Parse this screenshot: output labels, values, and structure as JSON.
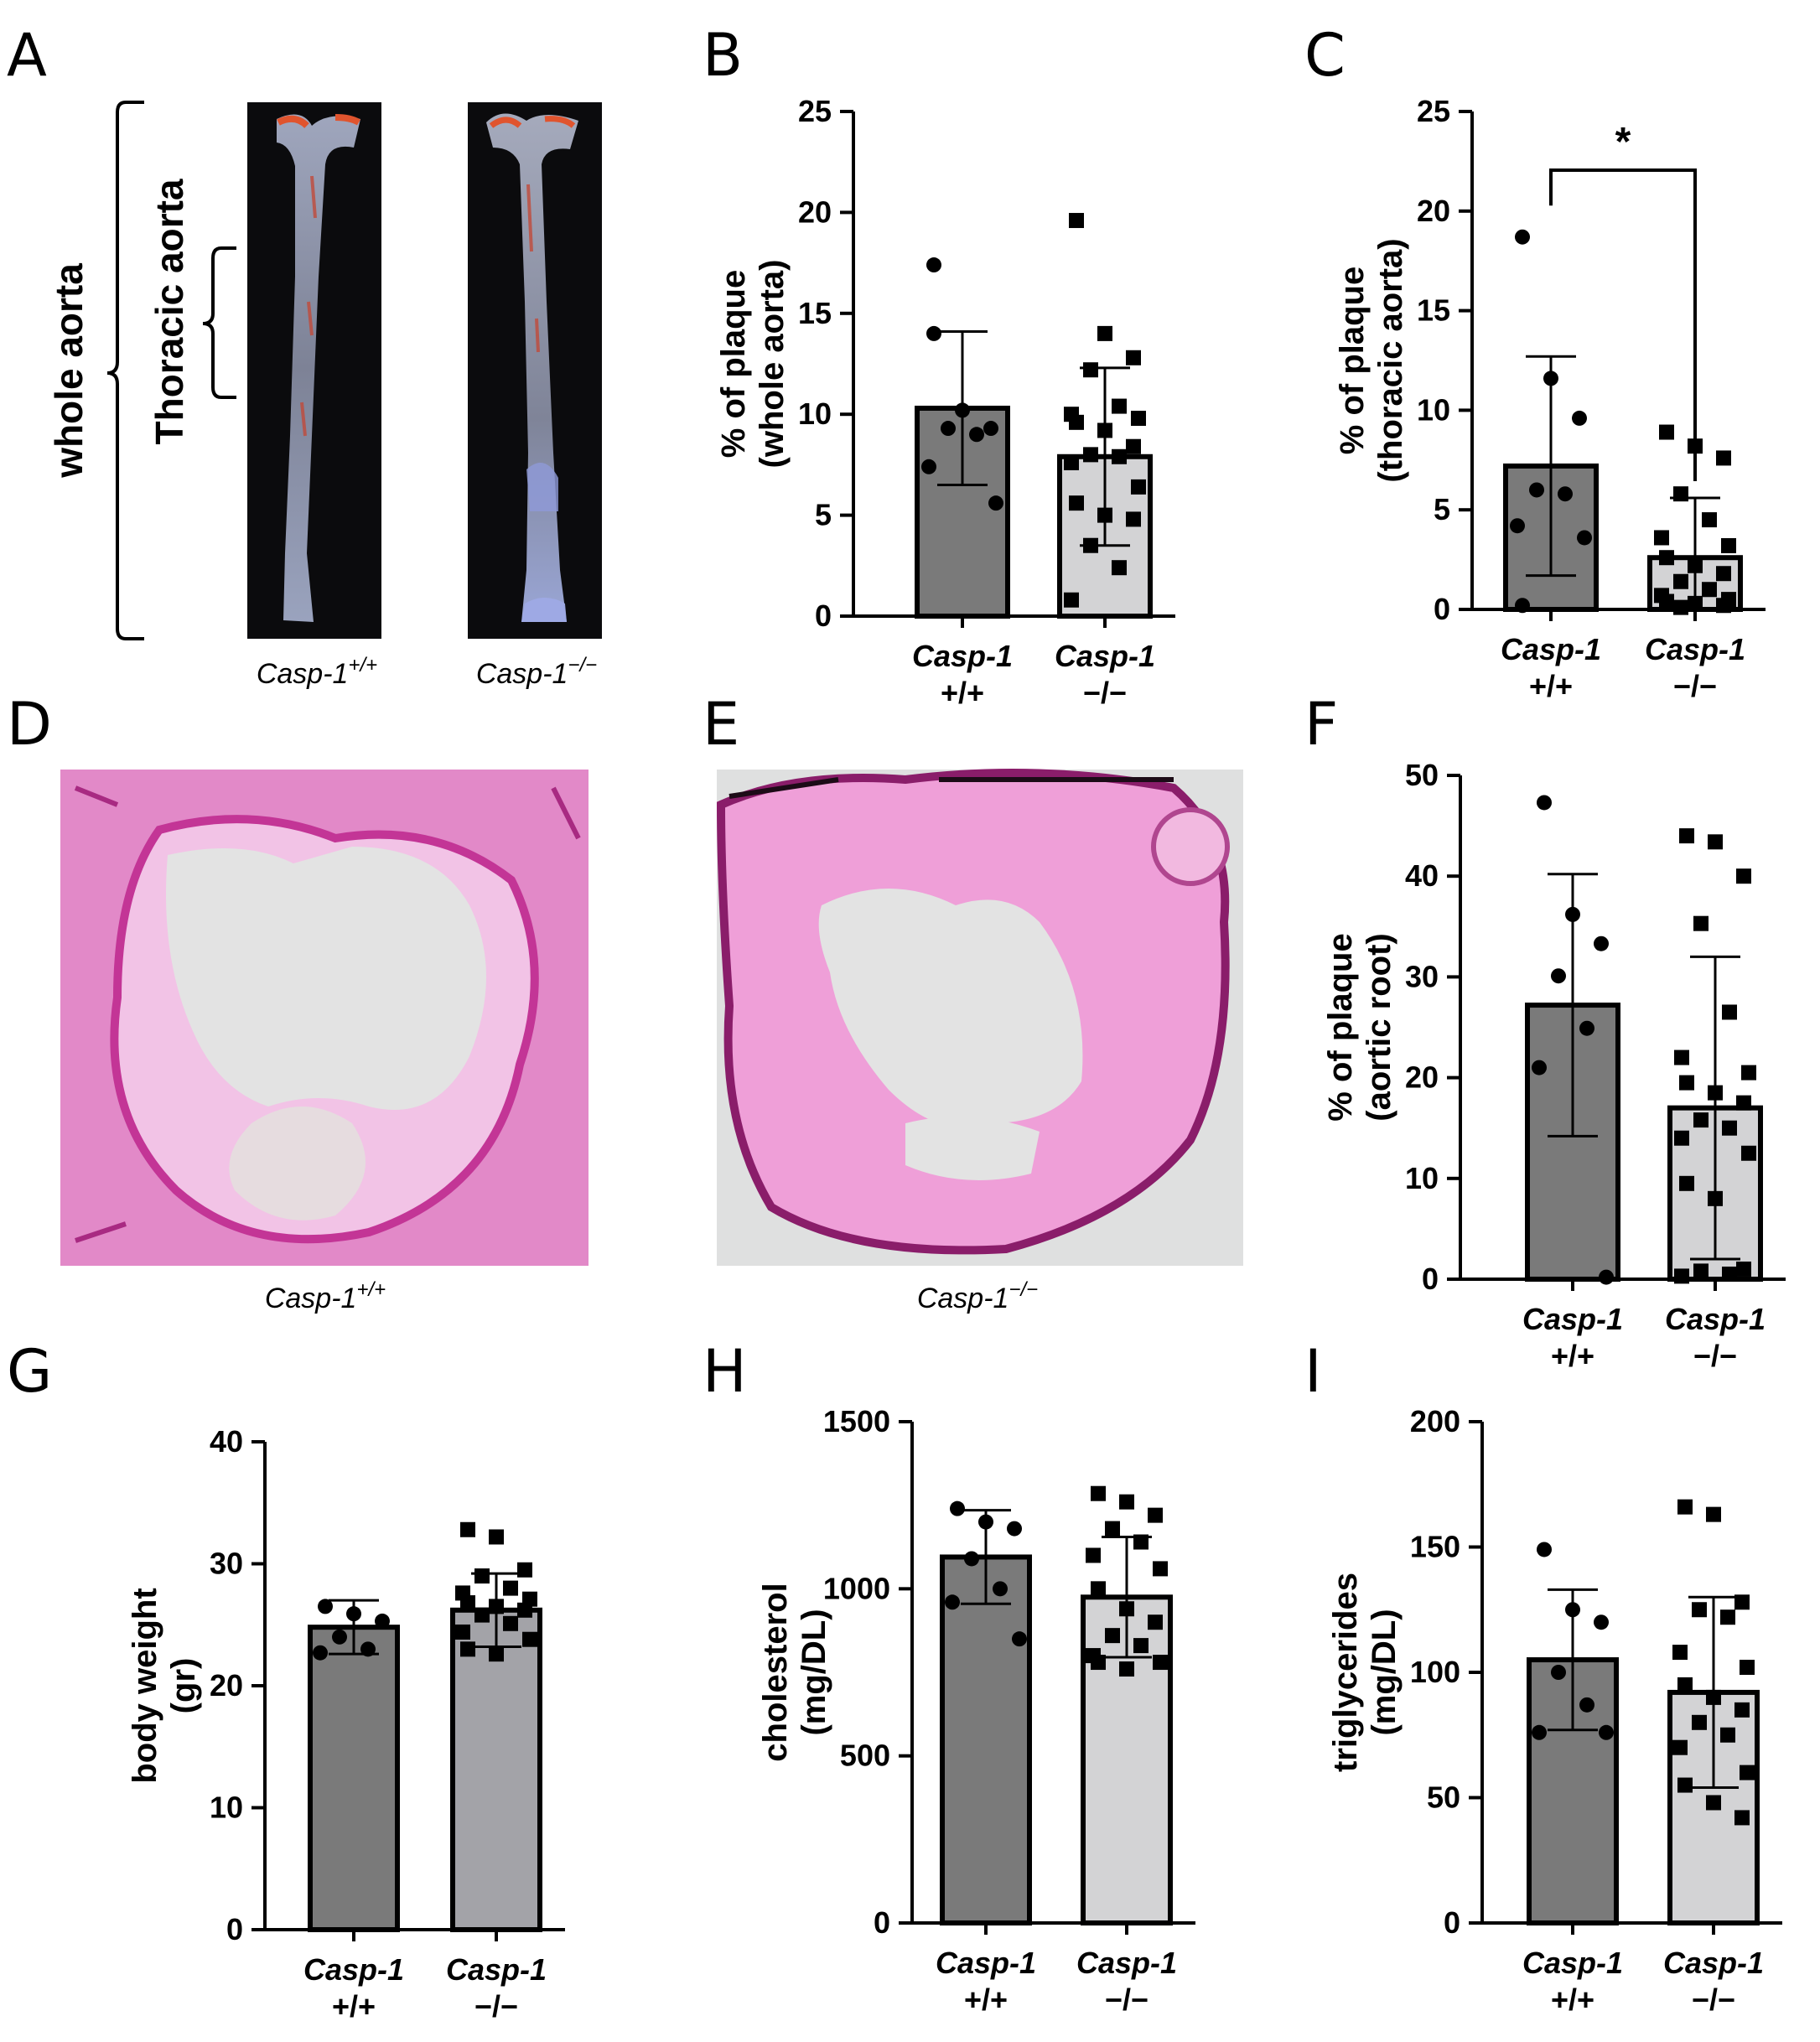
{
  "panel_letters": [
    "A",
    "B",
    "C",
    "D",
    "E",
    "F",
    "G",
    "H",
    "I"
  ],
  "panel_a": {
    "bracket_outer_label": "whole aorta",
    "bracket_inner_label": "Thoracic aorta",
    "caption_left": "Casp-1+/+",
    "caption_right": "Casp-1−/−"
  },
  "panel_de": {
    "caption_left": "Casp-1+/+",
    "caption_right": "Casp-1−/−"
  },
  "colors": {
    "wt_bar": "#7a7a7a",
    "ko_bar": "#d3d3d5",
    "ko_bar_g": "#a3a3a8",
    "axis": "#000000",
    "stain": "#e05ab8",
    "aorta": "#8f93a6"
  },
  "chart_data": [
    {
      "id": "B",
      "type": "bar",
      "ylabel_lines": [
        "% of plaque",
        "(whole aorta)"
      ],
      "ylim": [
        0,
        25
      ],
      "yticks": [
        0,
        5,
        10,
        15,
        20,
        25
      ],
      "categories": [
        [
          "Casp-1",
          "+/+"
        ],
        [
          "Casp-1",
          "−/−"
        ]
      ],
      "series": [
        {
          "group": "Casp-1 +/+",
          "marker": "circle",
          "mean": 10.3,
          "sd": 3.8,
          "points": [
            17.4,
            10.2,
            9.3,
            9.3,
            9.0,
            7.4,
            5.6,
            14.0
          ]
        },
        {
          "group": "Casp-1 −/−",
          "marker": "square",
          "mean": 7.9,
          "sd": 4.4,
          "points": [
            19.6,
            14.0,
            12.8,
            12.2,
            10.4,
            10.0,
            9.8,
            9.6,
            9.2,
            8.4,
            8.0,
            7.9,
            7.6,
            6.4,
            5.6,
            5.0,
            4.8,
            3.5,
            2.4,
            0.8
          ]
        }
      ],
      "significance": ""
    },
    {
      "id": "C",
      "type": "bar",
      "ylabel_lines": [
        "% of plaque",
        "(thoracic aorta)"
      ],
      "ylim": [
        0,
        25
      ],
      "yticks": [
        0,
        5,
        10,
        15,
        20,
        25
      ],
      "categories": [
        [
          "Casp-1",
          "+/+"
        ],
        [
          "Casp-1",
          "−/−"
        ]
      ],
      "series": [
        {
          "group": "Casp-1 +/+",
          "marker": "circle",
          "mean": 7.2,
          "sd": 5.5,
          "points": [
            18.7,
            11.6,
            9.6,
            6.0,
            5.8,
            4.2,
            3.6,
            0.2
          ]
        },
        {
          "group": "Casp-1 −/−",
          "marker": "square",
          "mean": 2.6,
          "sd": 3.0,
          "points": [
            8.9,
            8.2,
            7.6,
            5.8,
            4.5,
            3.6,
            3.2,
            2.6,
            2.2,
            1.8,
            1.4,
            1.0,
            0.7,
            0.5,
            0.4,
            0.3,
            0.2,
            0.1
          ]
        }
      ],
      "significance": "*"
    },
    {
      "id": "F",
      "type": "bar",
      "ylabel_lines": [
        "% of plaque",
        "(aortic root)"
      ],
      "ylim": [
        0,
        50
      ],
      "yticks": [
        0,
        10,
        20,
        30,
        40,
        50
      ],
      "categories": [
        [
          "Casp-1",
          "+/+"
        ],
        [
          "Casp-1",
          "−/−"
        ]
      ],
      "series": [
        {
          "group": "Casp-1 +/+",
          "marker": "circle",
          "mean": 27.2,
          "sd": 13.0,
          "points": [
            47.3,
            36.2,
            33.3,
            30.1,
            24.9,
            21.0,
            0.2
          ]
        },
        {
          "group": "Casp-1 −/−",
          "marker": "square",
          "mean": 17.0,
          "sd": 15.0,
          "points": [
            44.0,
            43.4,
            40.0,
            35.3,
            26.5,
            22.0,
            20.5,
            19.5,
            18.5,
            17.5,
            15.8,
            15.0,
            14.0,
            12.5,
            9.5,
            8.0,
            1.0,
            0.8,
            0.5,
            0.3
          ]
        }
      ],
      "significance": ""
    },
    {
      "id": "G",
      "type": "bar",
      "ylabel_lines": [
        "body weight",
        "(gr)"
      ],
      "ylim": [
        0,
        40
      ],
      "yticks": [
        0,
        10,
        20,
        30,
        40
      ],
      "categories": [
        [
          "Casp-1",
          "+/+"
        ],
        [
          "Casp-1",
          "−/−"
        ]
      ],
      "series": [
        {
          "group": "Casp-1 +/+",
          "marker": "circle",
          "mean": 24.8,
          "sd": 2.2,
          "points": [
            26.5,
            25.9,
            25.3,
            24.0,
            23.0,
            22.7
          ]
        },
        {
          "group": "Casp-1 −/−",
          "marker": "square",
          "mean": 26.2,
          "sd": 3.0,
          "points": [
            32.8,
            32.2,
            29.5,
            29.0,
            28.0,
            27.6,
            27.1,
            26.8,
            26.5,
            26.2,
            25.8,
            25.1,
            24.4,
            23.8,
            23.0,
            22.6
          ]
        }
      ],
      "significance": ""
    },
    {
      "id": "H",
      "type": "bar",
      "ylabel_lines": [
        "cholesterol",
        "(mg/DL)"
      ],
      "ylim": [
        0,
        1500
      ],
      "yticks": [
        0,
        500,
        1000,
        1500
      ],
      "categories": [
        [
          "Casp-1",
          "+/+"
        ],
        [
          "Casp-1",
          "−/−"
        ]
      ],
      "series": [
        {
          "group": "Casp-1 +/+",
          "marker": "circle",
          "mean": 1095,
          "sd": 140,
          "points": [
            1240,
            1200,
            1180,
            1090,
            1000,
            960,
            850
          ]
        },
        {
          "group": "Casp-1 −/−",
          "marker": "square",
          "mean": 975,
          "sd": 180,
          "points": [
            1285,
            1260,
            1220,
            1180,
            1140,
            1100,
            1060,
            1000,
            940,
            900,
            860,
            830,
            800,
            780,
            780,
            760
          ]
        }
      ],
      "significance": ""
    },
    {
      "id": "I",
      "type": "bar",
      "ylabel_lines": [
        "triglycerides",
        "(mg/DL)"
      ],
      "ylim": [
        0,
        200
      ],
      "yticks": [
        0,
        50,
        100,
        150,
        200
      ],
      "categories": [
        [
          "Casp-1",
          "+/+"
        ],
        [
          "Casp-1",
          "−/−"
        ]
      ],
      "series": [
        {
          "group": "Casp-1 +/+",
          "marker": "circle",
          "mean": 105,
          "sd": 28,
          "points": [
            149,
            125,
            120,
            100,
            87,
            76,
            76
          ]
        },
        {
          "group": "Casp-1 −/−",
          "marker": "square",
          "mean": 92,
          "sd": 38,
          "points": [
            166,
            163,
            128,
            125,
            122,
            108,
            102,
            95,
            90,
            85,
            80,
            75,
            70,
            60,
            55,
            48,
            42
          ]
        }
      ],
      "significance": ""
    }
  ]
}
